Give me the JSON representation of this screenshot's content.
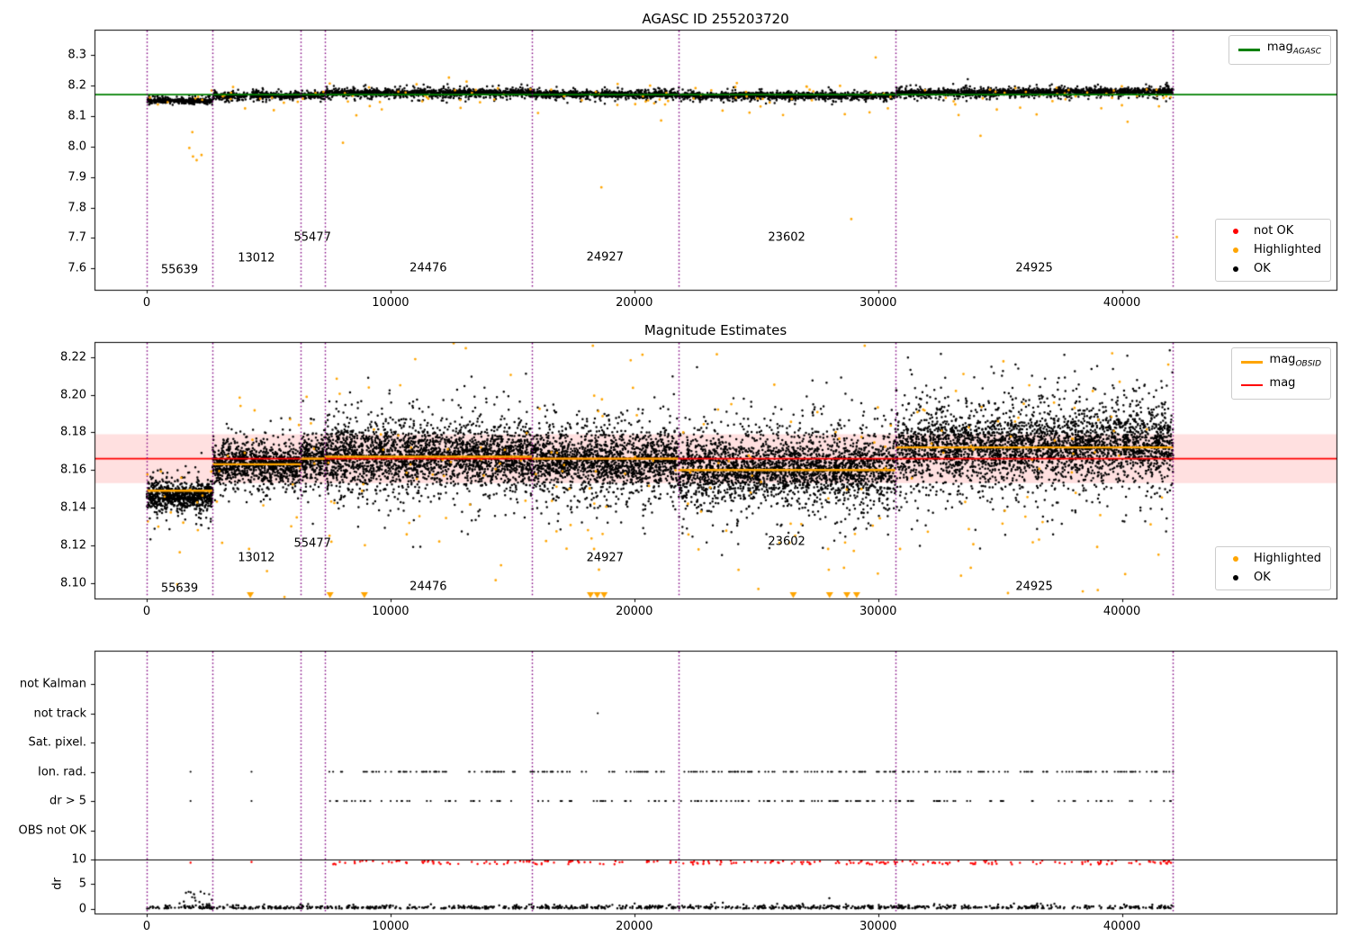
{
  "colors": {
    "ok": "#000000",
    "highlighted": "#ffa500",
    "not_ok": "#ff0000",
    "mag_agasc": "#008000",
    "mag_obsid": "#ffa500",
    "mag": "#ff0000",
    "mag_band": "rgba(255,0,0,0.12)",
    "divider": "#800080",
    "flag_red": "#ff0000"
  },
  "dividers": [
    0,
    2700,
    6300,
    7300,
    15800,
    21800,
    30700,
    42100
  ],
  "chart_data": [
    {
      "id": "agasc-mags",
      "type": "scatter",
      "title": "AGASC ID 255203720",
      "xlim": [
        -2140,
        48800
      ],
      "ylim": [
        7.53,
        8.383
      ],
      "xticks": [
        "0",
        "10000",
        "20000",
        "30000",
        "40000"
      ],
      "yticks": [
        "7.6",
        "7.7",
        "7.8",
        "7.9",
        "8.0",
        "8.1",
        "8.2",
        "8.3"
      ],
      "agasc_mag": 8.17,
      "legend_line": {
        "label": "mag",
        "sub": "AGASC"
      },
      "legend_points": [
        {
          "label": "not OK"
        },
        {
          "label": "Highlighted"
        },
        {
          "label": "OK"
        }
      ],
      "segments": [
        {
          "obsid": "55639",
          "x0": 0,
          "x1": 2700,
          "mean": 8.151,
          "sigma": 0.006,
          "drift": -0.002,
          "label_y": 7.595
        },
        {
          "obsid": "13012",
          "x0": 2700,
          "x1": 6300,
          "mean": 8.166,
          "sigma": 0.007,
          "drift": 0,
          "label_y": 7.632
        },
        {
          "obsid": "55477",
          "x0": 6300,
          "x1": 7300,
          "mean": 8.168,
          "sigma": 0.007,
          "drift": 0,
          "label_y": 7.7
        },
        {
          "obsid": "24476",
          "x0": 7300,
          "x1": 15800,
          "mean": 8.176,
          "sigma": 0.009,
          "drift": 0,
          "label_y": 7.6
        },
        {
          "obsid": "24927",
          "x0": 15800,
          "x1": 21800,
          "mean": 8.171,
          "sigma": 0.008,
          "drift": 0,
          "label_y": 7.635
        },
        {
          "obsid": "23602",
          "x0": 21800,
          "x1": 30700,
          "mean": 8.167,
          "sigma": 0.008,
          "drift": 0,
          "label_y": 7.7
        },
        {
          "obsid": "24925",
          "x0": 30700,
          "x1": 42100,
          "mean": 8.175,
          "sigma": 0.009,
          "drift": 0.006,
          "label_y": 7.6
        }
      ],
      "outliers_highlighted": [
        [
          1750,
          7.995
        ],
        [
          1900,
          7.967
        ],
        [
          2050,
          7.955
        ],
        [
          2250,
          7.972
        ],
        [
          8050,
          8.012
        ],
        [
          8600,
          8.102
        ],
        [
          18650,
          7.866
        ],
        [
          28900,
          7.762
        ],
        [
          29900,
          8.292
        ],
        [
          30400,
          8.125
        ],
        [
          33300,
          8.103
        ],
        [
          34200,
          8.035
        ],
        [
          26100,
          8.103
        ],
        [
          21100,
          8.085
        ],
        [
          42250,
          7.703
        ],
        [
          36500,
          8.105
        ],
        [
          40000,
          8.135
        ]
      ]
    },
    {
      "id": "magnitude-estimates",
      "type": "scatter",
      "title": "Magnitude Estimates",
      "xlim": [
        -2140,
        48800
      ],
      "ylim": [
        8.0917,
        8.228
      ],
      "xticks": [
        "0",
        "10000",
        "20000",
        "30000",
        "40000"
      ],
      "yticks": [
        "8.10",
        "8.12",
        "8.14",
        "8.16",
        "8.18",
        "8.20",
        "8.22"
      ],
      "mag": 8.166,
      "mag_band": [
        8.153,
        8.179
      ],
      "legend_lines": [
        {
          "label": "mag",
          "sub": "OBSID"
        },
        {
          "label": "mag",
          "sub": ""
        }
      ],
      "legend_points": [
        {
          "label": "Highlighted"
        },
        {
          "label": "OK"
        }
      ],
      "segments": [
        {
          "obsid": "55639",
          "x0": 0,
          "x1": 2700,
          "mag_obsid": 8.149,
          "mean": 8.146,
          "sigma": 0.0055,
          "drift": 0,
          "label_y": 8.097
        },
        {
          "obsid": "13012",
          "x0": 2700,
          "x1": 6300,
          "mag_obsid": 8.163,
          "mean": 8.163,
          "sigma": 0.007,
          "drift": 0,
          "label_y": 8.113
        },
        {
          "obsid": "55477",
          "x0": 6300,
          "x1": 7300,
          "mag_obsid": 8.166,
          "mean": 8.166,
          "sigma": 0.008,
          "drift": 0,
          "label_y": 8.121
        },
        {
          "obsid": "24476",
          "x0": 7300,
          "x1": 15800,
          "mag_obsid": 8.167,
          "mean": 8.167,
          "sigma": 0.012,
          "drift": 0,
          "label_y": 8.098
        },
        {
          "obsid": "24927",
          "x0": 15800,
          "x1": 21800,
          "mag_obsid": 8.166,
          "mean": 8.165,
          "sigma": 0.011,
          "drift": 0,
          "label_y": 8.113
        },
        {
          "obsid": "23602",
          "x0": 21800,
          "x1": 30700,
          "mag_obsid": 8.16,
          "mean": 8.16,
          "sigma": 0.012,
          "drift": 0,
          "label_y": 8.122
        },
        {
          "obsid": "24925",
          "x0": 30700,
          "x1": 42100,
          "mag_obsid": 8.172,
          "mean": 8.171,
          "sigma": 0.0135,
          "drift": 0.003,
          "label_y": 8.098
        }
      ],
      "outliers_highlighted": [
        [
          18300,
          8.226
        ],
        [
          29450,
          8.226
        ],
        [
          33500,
          8.211
        ],
        [
          39600,
          8.222
        ],
        [
          41900,
          8.216
        ],
        [
          36200,
          8.205
        ],
        [
          10400,
          8.205
        ],
        [
          18100,
          8.128
        ],
        [
          18350,
          8.118
        ],
        [
          18550,
          8.107
        ],
        [
          18700,
          8.126
        ],
        [
          26600,
          8.125
        ],
        [
          27950,
          8.118
        ],
        [
          28600,
          8.108
        ],
        [
          29050,
          8.126
        ],
        [
          4200,
          8.118
        ],
        [
          7500,
          8.125
        ],
        [
          8950,
          8.12
        ],
        [
          41500,
          8.115
        ],
        [
          33800,
          8.108
        ],
        [
          30900,
          8.118
        ],
        [
          12000,
          8.122
        ],
        [
          2100,
          8.128
        ],
        [
          1500,
          8.132
        ]
      ],
      "clipped_low_x": [
        4250,
        7520,
        8930,
        18200,
        18480,
        18760,
        26520,
        28010,
        28720,
        29120
      ]
    },
    {
      "id": "flags",
      "type": "scatter",
      "xlim": [
        -2140,
        48800
      ],
      "xticks": [
        "0",
        "10000",
        "20000",
        "30000",
        "40000"
      ],
      "categories": [
        "not Kalman",
        "not track",
        "Sat. pixel.",
        "Ion. rad.",
        "dr > 5",
        "OBS not OK"
      ],
      "dr_ticks": [
        "10",
        "5",
        "0"
      ],
      "dr_label": "dr",
      "dr_line": 10,
      "flag_range": [
        7300,
        42100
      ],
      "counts": {
        "ion_rad": 260,
        "dr_gt5": 170,
        "dr_red": 230,
        "dr_black": 950
      },
      "singles": {
        "not_track": [
          18500
        ],
        "ion_rad": [
          1800,
          4300
        ],
        "dr_gt5": [
          1800,
          4300
        ],
        "dr_red": [
          1800,
          4300
        ]
      }
    }
  ]
}
